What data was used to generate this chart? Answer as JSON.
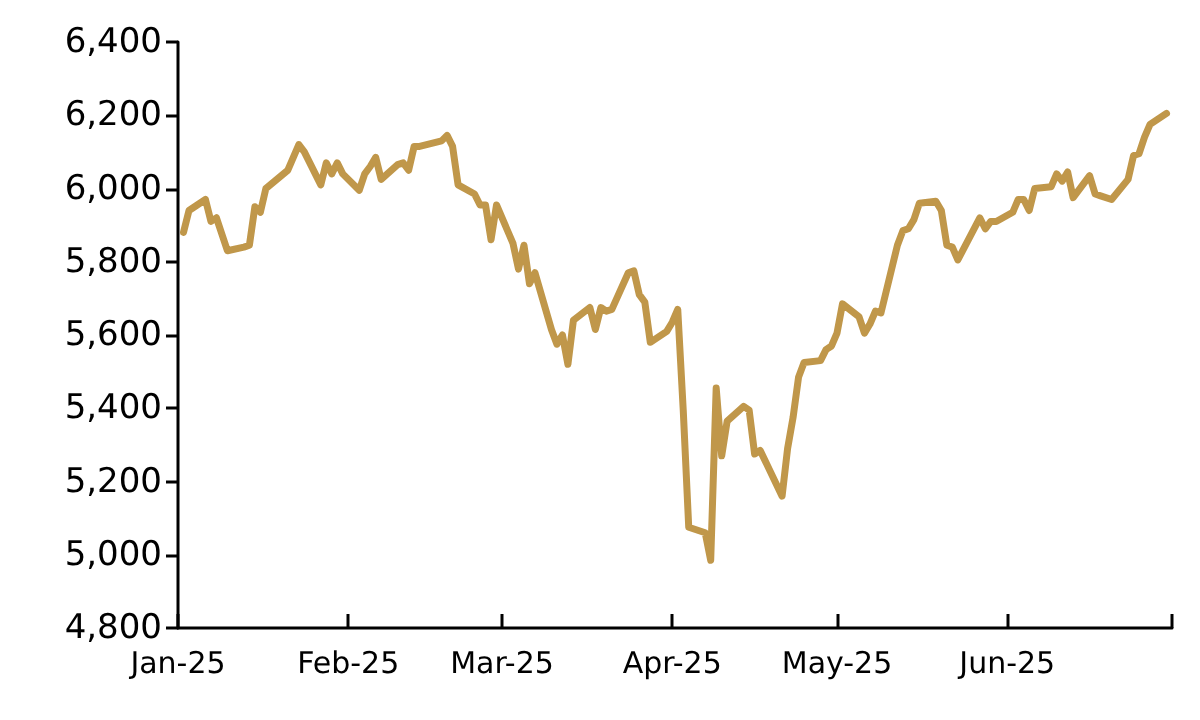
{
  "chart_data": {
    "type": "line",
    "xlim": [
      "2025-01-01",
      "2025-07-01"
    ],
    "xticks": [
      {
        "value": "2025-01-01",
        "label": "Jan-25"
      },
      {
        "value": "2025-02-01",
        "label": "Feb-25"
      },
      {
        "value": "2025-03-01",
        "label": "Mar-25"
      },
      {
        "value": "2025-04-01",
        "label": "Apr-25"
      },
      {
        "value": "2025-05-01",
        "label": "May-25"
      },
      {
        "value": "2025-06-01",
        "label": "Jun-25"
      },
      {
        "value": "2025-07-01",
        "label": null
      }
    ],
    "ylim": [
      4800,
      6400
    ],
    "yticks": [
      {
        "value": 4800,
        "label": "4,800"
      },
      {
        "value": 5000,
        "label": "5,000"
      },
      {
        "value": 5200,
        "label": "5,200"
      },
      {
        "value": 5400,
        "label": "5,400"
      },
      {
        "value": 5600,
        "label": "5,600"
      },
      {
        "value": 5800,
        "label": "5,800"
      },
      {
        "value": 6000,
        "label": "6,000"
      },
      {
        "value": 6200,
        "label": "6,200"
      },
      {
        "value": 6400,
        "label": "6,400"
      }
    ],
    "grid": false,
    "marker": "none",
    "line_style": "solid",
    "x": [
      "2025-01-02",
      "2025-01-03",
      "2025-01-06",
      "2025-01-07",
      "2025-01-08",
      "2025-01-10",
      "2025-01-13",
      "2025-01-14",
      "2025-01-15",
      "2025-01-16",
      "2025-01-17",
      "2025-01-21",
      "2025-01-22",
      "2025-01-23",
      "2025-01-24",
      "2025-01-27",
      "2025-01-28",
      "2025-01-29",
      "2025-01-30",
      "2025-01-31",
      "2025-02-03",
      "2025-02-04",
      "2025-02-05",
      "2025-02-06",
      "2025-02-07",
      "2025-02-10",
      "2025-02-11",
      "2025-02-12",
      "2025-02-13",
      "2025-02-14",
      "2025-02-18",
      "2025-02-19",
      "2025-02-20",
      "2025-02-21",
      "2025-02-24",
      "2025-02-25",
      "2025-02-26",
      "2025-02-27",
      "2025-02-28",
      "2025-03-03",
      "2025-03-04",
      "2025-03-05",
      "2025-03-06",
      "2025-03-07",
      "2025-03-10",
      "2025-03-11",
      "2025-03-12",
      "2025-03-13",
      "2025-03-14",
      "2025-03-17",
      "2025-03-18",
      "2025-03-19",
      "2025-03-20",
      "2025-03-21",
      "2025-03-24",
      "2025-03-25",
      "2025-03-26",
      "2025-03-27",
      "2025-03-28",
      "2025-03-31",
      "2025-04-01",
      "2025-04-02",
      "2025-04-03",
      "2025-04-04",
      "2025-04-07",
      "2025-04-08",
      "2025-04-09",
      "2025-04-10",
      "2025-04-11",
      "2025-04-14",
      "2025-04-15",
      "2025-04-16",
      "2025-04-17",
      "2025-04-21",
      "2025-04-22",
      "2025-04-23",
      "2025-04-24",
      "2025-04-25",
      "2025-04-28",
      "2025-04-29",
      "2025-04-30",
      "2025-05-01",
      "2025-05-02",
      "2025-05-05",
      "2025-05-06",
      "2025-05-07",
      "2025-05-08",
      "2025-05-09",
      "2025-05-12",
      "2025-05-13",
      "2025-05-14",
      "2025-05-15",
      "2025-05-16",
      "2025-05-19",
      "2025-05-20",
      "2025-05-21",
      "2025-05-22",
      "2025-05-23",
      "2025-05-27",
      "2025-05-28",
      "2025-05-29",
      "2025-05-30",
      "2025-06-02",
      "2025-06-03",
      "2025-06-04",
      "2025-06-05",
      "2025-06-06",
      "2025-06-09",
      "2025-06-10",
      "2025-06-11",
      "2025-06-12",
      "2025-06-13",
      "2025-06-16",
      "2025-06-17",
      "2025-06-18",
      "2025-06-20",
      "2025-06-23",
      "2025-06-24",
      "2025-06-25",
      "2025-06-26",
      "2025-06-27",
      "2025-06-30"
    ],
    "series": [
      {
        "color": "#c0974a",
        "values": [
          5880,
          5940,
          5970,
          5910,
          5920,
          5830,
          5840,
          5845,
          5950,
          5935,
          6000,
          6050,
          6085,
          6120,
          6100,
          6010,
          6070,
          6040,
          6070,
          6040,
          5995,
          6040,
          6060,
          6085,
          6025,
          6065,
          6070,
          6050,
          6115,
          6115,
          6130,
          6145,
          6115,
          6010,
          5985,
          5955,
          5955,
          5860,
          5955,
          5850,
          5780,
          5845,
          5740,
          5770,
          5615,
          5575,
          5600,
          5520,
          5640,
          5675,
          5615,
          5675,
          5665,
          5670,
          5770,
          5775,
          5710,
          5690,
          5580,
          5610,
          5635,
          5670,
          5395,
          5075,
          5060,
          4985,
          5455,
          5270,
          5365,
          5405,
          5395,
          5275,
          5285,
          5160,
          5290,
          5375,
          5485,
          5525,
          5530,
          5560,
          5570,
          5605,
          5685,
          5650,
          5605,
          5630,
          5665,
          5660,
          5845,
          5885,
          5890,
          5915,
          5960,
          5965,
          5940,
          5845,
          5840,
          5805,
          5920,
          5890,
          5910,
          5910,
          5935,
          5970,
          5970,
          5940,
          6000,
          6005,
          6040,
          6020,
          6045,
          5975,
          6035,
          5985,
          5980,
          5970,
          6025,
          6090,
          6095,
          6140,
          6175,
          6205
        ]
      }
    ]
  }
}
